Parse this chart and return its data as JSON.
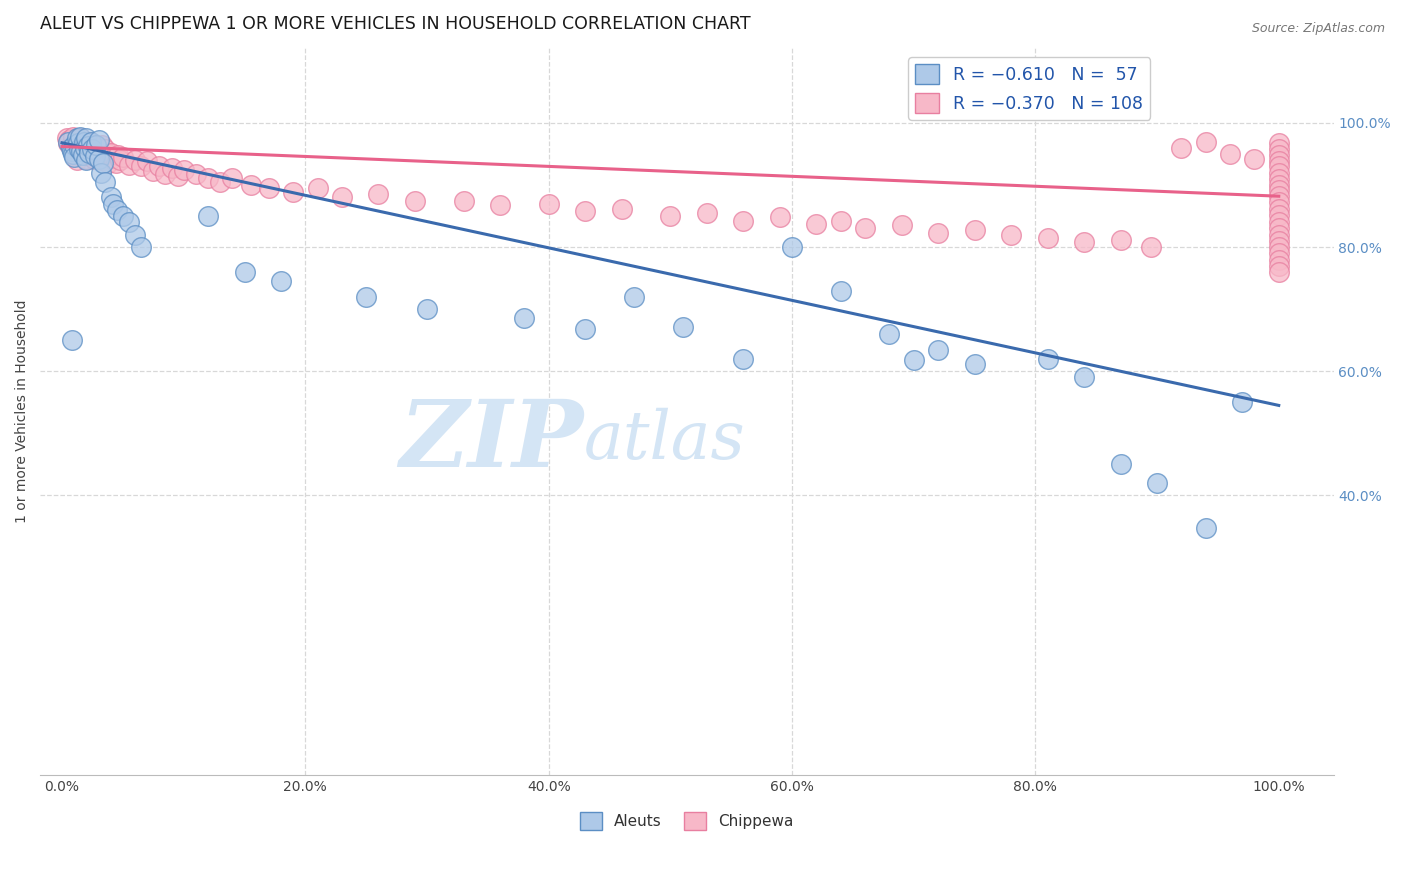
{
  "title": "ALEUT VS CHIPPEWA 1 OR MORE VEHICLES IN HOUSEHOLD CORRELATION CHART",
  "source": "Source: ZipAtlas.com",
  "ylabel": "1 or more Vehicles in Household",
  "legend_r_blue": "R = −0.610",
  "legend_n_blue": "N =  57",
  "legend_r_pink": "R = −0.370",
  "legend_n_pink": "N = 108",
  "legend_bottom": [
    "Aleuts",
    "Chippewa"
  ],
  "blue_fill": "#aec9e8",
  "blue_edge": "#5b8ec4",
  "pink_fill": "#f7b8c8",
  "pink_edge": "#e87fa0",
  "blue_line": "#3a6aad",
  "pink_line": "#e8618a",
  "watermark_color": "#d4e5f5",
  "right_tick_color": "#5b8ec4",
  "xtick_vals": [
    0.0,
    0.2,
    0.4,
    0.6,
    0.8,
    1.0
  ],
  "xtick_labels": [
    "0.0%",
    "20.0%",
    "40.0%",
    "60.0%",
    "80.0%",
    "100.0%"
  ],
  "ytick_vals": [
    0.4,
    0.6,
    0.8,
    1.0
  ],
  "ytick_labels": [
    "40.0%",
    "60.0%",
    "80.0%",
    "100.0%"
  ],
  "grid_color": "#d8d8d8",
  "blue_line_x0": 0.0,
  "blue_line_y0": 0.968,
  "blue_line_x1": 1.0,
  "blue_line_y1": 0.545,
  "pink_line_x0": 0.0,
  "pink_line_y0": 0.962,
  "pink_line_x1": 1.0,
  "pink_line_y1": 0.882,
  "aleuts_x": [
    0.005,
    0.007,
    0.008,
    0.009,
    0.01,
    0.01,
    0.012,
    0.013,
    0.014,
    0.015,
    0.016,
    0.017,
    0.018,
    0.019,
    0.02,
    0.02,
    0.021,
    0.022,
    0.024,
    0.025,
    0.027,
    0.028,
    0.03,
    0.03,
    0.032,
    0.034,
    0.035,
    0.04,
    0.042,
    0.045,
    0.05,
    0.055,
    0.06,
    0.065,
    0.008,
    0.12,
    0.15,
    0.18,
    0.25,
    0.3,
    0.38,
    0.43,
    0.47,
    0.51,
    0.56,
    0.6,
    0.64,
    0.68,
    0.7,
    0.72,
    0.75,
    0.81,
    0.84,
    0.87,
    0.9,
    0.94,
    0.97
  ],
  "aleuts_y": [
    0.97,
    0.96,
    0.955,
    0.95,
    0.965,
    0.945,
    0.975,
    0.968,
    0.958,
    0.978,
    0.955,
    0.948,
    0.97,
    0.96,
    0.975,
    0.94,
    0.963,
    0.952,
    0.97,
    0.958,
    0.946,
    0.964,
    0.972,
    0.942,
    0.92,
    0.935,
    0.905,
    0.88,
    0.87,
    0.86,
    0.85,
    0.84,
    0.82,
    0.8,
    0.65,
    0.85,
    0.76,
    0.745,
    0.72,
    0.7,
    0.685,
    0.668,
    0.72,
    0.672,
    0.62,
    0.8,
    0.73,
    0.66,
    0.618,
    0.635,
    0.612,
    0.62,
    0.59,
    0.45,
    0.42,
    0.348,
    0.55
  ],
  "chippewa_x": [
    0.004,
    0.005,
    0.006,
    0.007,
    0.008,
    0.009,
    0.01,
    0.01,
    0.011,
    0.012,
    0.013,
    0.014,
    0.015,
    0.016,
    0.017,
    0.018,
    0.019,
    0.02,
    0.02,
    0.021,
    0.022,
    0.023,
    0.024,
    0.025,
    0.026,
    0.027,
    0.028,
    0.029,
    0.03,
    0.031,
    0.032,
    0.033,
    0.035,
    0.036,
    0.038,
    0.04,
    0.042,
    0.044,
    0.046,
    0.048,
    0.05,
    0.055,
    0.06,
    0.065,
    0.07,
    0.075,
    0.08,
    0.085,
    0.09,
    0.095,
    0.1,
    0.11,
    0.12,
    0.13,
    0.14,
    0.155,
    0.17,
    0.19,
    0.21,
    0.23,
    0.26,
    0.29,
    0.33,
    0.36,
    0.4,
    0.43,
    0.46,
    0.5,
    0.53,
    0.56,
    0.59,
    0.62,
    0.64,
    0.66,
    0.69,
    0.72,
    0.75,
    0.78,
    0.81,
    0.84,
    0.87,
    0.895,
    0.92,
    0.94,
    0.96,
    0.98,
    1.0,
    1.0,
    1.0,
    1.0,
    1.0,
    1.0,
    1.0,
    1.0,
    1.0,
    1.0,
    1.0,
    1.0,
    1.0,
    1.0,
    1.0,
    1.0,
    1.0,
    1.0,
    1.0,
    1.0,
    1.0,
    1.0
  ],
  "chippewa_y": [
    0.975,
    0.968,
    0.972,
    0.965,
    0.958,
    0.978,
    0.955,
    0.948,
    0.962,
    0.94,
    0.975,
    0.968,
    0.958,
    0.975,
    0.96,
    0.95,
    0.97,
    0.965,
    0.942,
    0.958,
    0.948,
    0.97,
    0.96,
    0.952,
    0.942,
    0.965,
    0.955,
    0.945,
    0.96,
    0.95,
    0.94,
    0.965,
    0.958,
    0.945,
    0.936,
    0.952,
    0.943,
    0.936,
    0.948,
    0.94,
    0.945,
    0.932,
    0.94,
    0.93,
    0.938,
    0.922,
    0.93,
    0.918,
    0.928,
    0.915,
    0.925,
    0.918,
    0.912,
    0.905,
    0.912,
    0.9,
    0.895,
    0.888,
    0.895,
    0.88,
    0.885,
    0.875,
    0.875,
    0.868,
    0.87,
    0.858,
    0.862,
    0.85,
    0.855,
    0.842,
    0.848,
    0.838,
    0.842,
    0.83,
    0.835,
    0.822,
    0.828,
    0.82,
    0.815,
    0.808,
    0.812,
    0.8,
    0.96,
    0.97,
    0.95,
    0.942,
    0.968,
    0.958,
    0.948,
    0.938,
    0.93,
    0.92,
    0.91,
    0.9,
    0.892,
    0.882,
    0.872,
    0.862,
    0.852,
    0.84,
    0.83,
    0.82,
    0.81,
    0.8,
    0.79,
    0.78,
    0.77,
    0.76
  ]
}
